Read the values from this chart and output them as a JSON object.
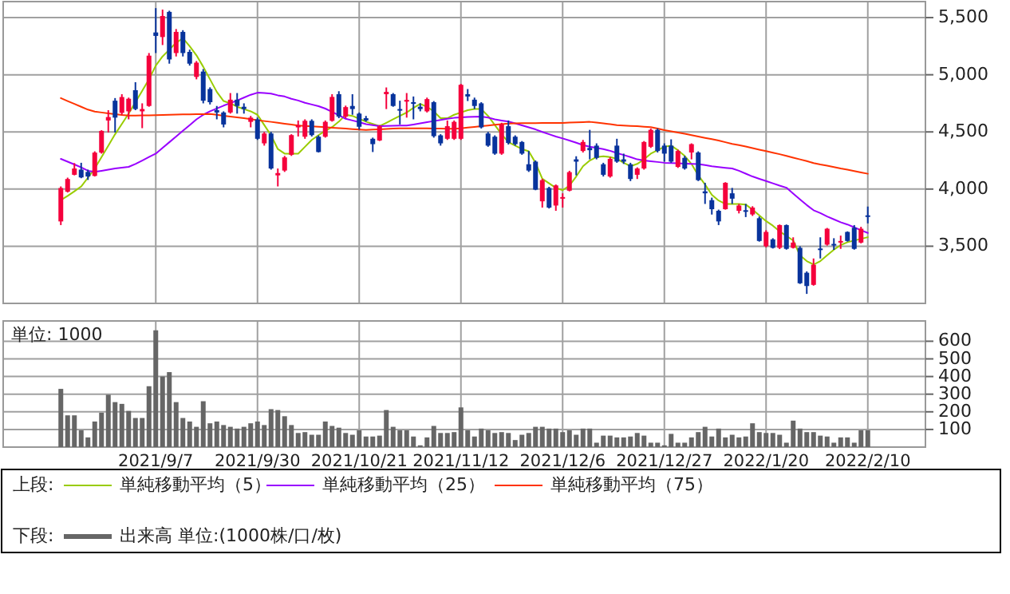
{
  "chart_data": [
    {
      "type": "candlestick",
      "categories": [
        null,
        null,
        null,
        null,
        null,
        null,
        null,
        null,
        null,
        null,
        null,
        null,
        null,
        null,
        null,
        null,
        null,
        null,
        null,
        null,
        null,
        null,
        "2021/9/7",
        null,
        null,
        null,
        null,
        null,
        null,
        null,
        null,
        null,
        null,
        null,
        null,
        null,
        null,
        "2021/9/30",
        null,
        null,
        null,
        null,
        null,
        null,
        null,
        null,
        null,
        null,
        null,
        null,
        null,
        null,
        "2021/10/21",
        null,
        null,
        null,
        null,
        null,
        null,
        null,
        null,
        null,
        null,
        null,
        null,
        null,
        null,
        "2021/11/12",
        null,
        null,
        null,
        null,
        null,
        null,
        null,
        null,
        null,
        null,
        null,
        null,
        null,
        null,
        "2021/12/6",
        null,
        null,
        null,
        null,
        null,
        null,
        null,
        null,
        null,
        null,
        null,
        null,
        null,
        null,
        "2021/12/27",
        null,
        null,
        null,
        null,
        null,
        null,
        null,
        null,
        null,
        null,
        null,
        null,
        null,
        null,
        "2022/1/20",
        null,
        null,
        null,
        null,
        null,
        null,
        null,
        null,
        null,
        null,
        null,
        null,
        null,
        null,
        "2022/2/10",
        null,
        null,
        null,
        null,
        null,
        null,
        null,
        null
      ],
      "ohlc": [
        null,
        null,
        null,
        null,
        null,
        null,
        null,
        null,
        [
          3717,
          4023,
          3685,
          4009
        ],
        [
          3977,
          4100,
          3970,
          4088
        ],
        [
          4125,
          4227,
          4120,
          4180
        ],
        [
          4170,
          4230,
          4095,
          4102
        ],
        [
          4150,
          4170,
          4080,
          4110
        ],
        [
          4115,
          4330,
          4110,
          4319
        ],
        [
          4319,
          4515,
          4310,
          4509
        ],
        [
          4600,
          4690,
          4495,
          4630
        ],
        [
          4773,
          4796,
          4495,
          4625
        ],
        [
          4667,
          4830,
          4650,
          4805
        ],
        [
          4680,
          4800,
          4610,
          4790
        ],
        [
          4865,
          4935,
          4690,
          4700
        ],
        [
          4680,
          4750,
          4533,
          4700
        ],
        [
          4727,
          5190,
          4720,
          5167
        ],
        [
          5370,
          5583,
          5190,
          5340
        ],
        [
          5330,
          5570,
          5260,
          5514
        ],
        [
          5550,
          5560,
          5097,
          5134
        ],
        [
          5190,
          5400,
          5160,
          5375
        ],
        [
          5375,
          5390,
          5160,
          5190
        ],
        [
          5200,
          5220,
          5080,
          5097
        ],
        [
          4981,
          5120,
          4960,
          5106
        ],
        [
          5028,
          5050,
          4750,
          4773
        ],
        [
          4875,
          4890,
          4740,
          4760
        ],
        [
          4690,
          4727,
          4610,
          4670
        ],
        [
          4670,
          4680,
          4540,
          4565
        ],
        [
          4670,
          4840,
          4660,
          4782
        ],
        [
          4782,
          4840,
          4660,
          4727
        ],
        [
          4720,
          4750,
          4660,
          4700
        ],
        [
          4588,
          4640,
          4540,
          4625
        ],
        [
          4610,
          4625,
          4430,
          4440
        ],
        [
          4400,
          4500,
          4380,
          4486
        ],
        [
          4486,
          4500,
          4170,
          4180
        ],
        [
          4120,
          4180,
          4023,
          4140
        ],
        [
          4162,
          4290,
          4150,
          4277
        ],
        [
          4300,
          4480,
          4290,
          4472
        ],
        [
          4540,
          4600,
          4460,
          4560
        ],
        [
          4458,
          4610,
          4440,
          4597
        ],
        [
          4597,
          4610,
          4460,
          4472
        ],
        [
          4458,
          4470,
          4320,
          4324
        ],
        [
          4458,
          4600,
          4450,
          4588
        ],
        [
          4597,
          4830,
          4590,
          4806
        ],
        [
          4830,
          4856,
          4620,
          4634
        ],
        [
          4634,
          4730,
          4620,
          4717
        ],
        [
          4727,
          4830,
          4650,
          4700
        ],
        [
          4660,
          4670,
          4520,
          4545
        ],
        [
          4620,
          4640,
          4590,
          4600
        ],
        [
          4440,
          4450,
          4324,
          4393
        ],
        [
          4425,
          4560,
          4420,
          4550
        ],
        [
          4830,
          4889,
          4700,
          4850
        ],
        [
          4830,
          4840,
          4720,
          4727
        ],
        [
          4700,
          4773,
          4565,
          4690
        ],
        [
          4765,
          4840,
          4625,
          4780
        ],
        [
          4760,
          4810,
          4610,
          4750
        ],
        [
          4720,
          4750,
          4680,
          4700
        ],
        [
          4680,
          4800,
          4670,
          4787
        ],
        [
          4760,
          4770,
          4450,
          4463
        ],
        [
          4470,
          4480,
          4380,
          4400
        ],
        [
          4440,
          4600,
          4430,
          4550
        ],
        [
          4440,
          4600,
          4430,
          4588
        ],
        [
          4440,
          4920,
          4430,
          4912
        ],
        [
          4830,
          4875,
          4770,
          4810
        ],
        [
          4782,
          4800,
          4700,
          4727
        ],
        [
          4750,
          4760,
          4530,
          4540
        ],
        [
          4486,
          4500,
          4370,
          4380
        ],
        [
          4458,
          4470,
          4300,
          4310
        ],
        [
          4310,
          4580,
          4300,
          4565
        ],
        [
          4550,
          4600,
          4390,
          4403
        ],
        [
          4458,
          4470,
          4380,
          4393
        ],
        [
          4412,
          4420,
          4300,
          4310
        ],
        [
          4217,
          4333,
          4150,
          4162
        ],
        [
          4240,
          4250,
          3990,
          3995
        ],
        [
          3893,
          4090,
          3838,
          4078
        ],
        [
          4009,
          4020,
          3830,
          3838
        ],
        [
          3856,
          4040,
          3810,
          4032
        ],
        [
          3925,
          3963,
          3838,
          3930
        ],
        [
          3986,
          4160,
          3980,
          4148
        ],
        [
          4260,
          4287,
          4120,
          4240
        ],
        [
          4333,
          4430,
          4320,
          4412
        ],
        [
          4360,
          4518,
          4260,
          4340
        ],
        [
          4380,
          4400,
          4260,
          4273
        ],
        [
          4217,
          4230,
          4110,
          4125
        ],
        [
          4110,
          4280,
          4100,
          4264
        ],
        [
          4380,
          4440,
          4230,
          4240
        ],
        [
          4260,
          4310,
          4220,
          4240
        ],
        [
          4217,
          4230,
          4070,
          4088
        ],
        [
          4125,
          4190,
          4088,
          4180
        ],
        [
          4180,
          4420,
          4170,
          4412
        ],
        [
          4370,
          4530,
          4360,
          4518
        ],
        [
          4518,
          4530,
          4320,
          4333
        ],
        [
          4380,
          4400,
          4240,
          4310
        ],
        [
          4380,
          4435,
          4230,
          4240
        ],
        [
          4194,
          4345,
          4185,
          4333
        ],
        [
          4273,
          4290,
          4170,
          4180
        ],
        [
          4320,
          4400,
          4260,
          4393
        ],
        [
          4320,
          4330,
          4070,
          4078
        ],
        [
          3980,
          4055,
          3870,
          3963
        ],
        [
          3903,
          3925,
          3777,
          3824
        ],
        [
          3810,
          3820,
          3685,
          3717
        ],
        [
          3824,
          4060,
          3820,
          4055
        ],
        [
          3963,
          4010,
          3870,
          3916
        ],
        [
          3810,
          3870,
          3787,
          3856
        ],
        [
          3815,
          3870,
          3755,
          3810
        ],
        [
          3778,
          3850,
          3765,
          3838
        ],
        [
          3745,
          3760,
          3540,
          3546
        ],
        [
          3500,
          3640,
          3490,
          3625
        ],
        [
          3560,
          3570,
          3480,
          3486
        ],
        [
          3486,
          3690,
          3475,
          3685
        ],
        [
          3685,
          3690,
          3470,
          3477
        ],
        [
          3486,
          3578,
          3480,
          3532
        ],
        [
          3486,
          3500,
          3170,
          3176
        ],
        [
          3268,
          3280,
          3083,
          3152
        ],
        [
          3162,
          3393,
          3155,
          3338
        ],
        [
          3480,
          3578,
          3393,
          3477
        ],
        [
          3514,
          3660,
          3505,
          3653
        ],
        [
          3520,
          3570,
          3468,
          3514
        ],
        [
          3540,
          3593,
          3477,
          3546
        ],
        [
          3625,
          3630,
          3540,
          3546
        ],
        [
          3662,
          3685,
          3470,
          3477
        ],
        [
          3532,
          3670,
          3525,
          3653
        ],
        [
          3770,
          3847,
          3700,
          3763
        ],
        null,
        null,
        null,
        null,
        null,
        null,
        null,
        null
      ],
      "colors": [
        null,
        null,
        null,
        null,
        null,
        null,
        null,
        null,
        "#f5003c",
        "#f5003c",
        "#f5003c",
        "#08339c",
        "#08339c",
        "#f5003c",
        "#f5003c",
        "#f5003c",
        "#08339c",
        "#f5003c",
        "#f5003c",
        "#08339c",
        "#f5003c",
        "#f5003c",
        "#08339c",
        "#f5003c",
        "#08339c",
        "#f5003c",
        "#08339c",
        "#08339c",
        "#f5003c",
        "#08339c",
        "#08339c",
        "#08339c",
        "#08339c",
        "#f5003c",
        "#08339c",
        "#08339c",
        "#f5003c",
        "#08339c",
        "#f5003c",
        "#08339c",
        "#f5003c",
        "#f5003c",
        "#f5003c",
        "#f5003c",
        "#f5003c",
        "#08339c",
        "#08339c",
        "#f5003c",
        "#f5003c",
        "#08339c",
        "#f5003c",
        "#08339c",
        "#08339c",
        "#08339c",
        "#08339c",
        "#f5003c",
        "#f5003c",
        "#08339c",
        "#08339c",
        "#f5003c",
        "#08339c",
        "#08339c",
        "#f5003c",
        "#08339c",
        "#08339c",
        "#f5003c",
        "#f5003c",
        "#f5003c",
        "#08339c",
        "#08339c",
        "#08339c",
        "#08339c",
        "#08339c",
        "#f5003c",
        "#08339c",
        "#08339c",
        "#08339c",
        "#08339c",
        "#08339c",
        "#f5003c",
        "#08339c",
        "#f5003c",
        "#f5003c",
        "#f5003c",
        "#08339c",
        "#f5003c",
        "#08339c",
        "#08339c",
        "#08339c",
        "#f5003c",
        "#08339c",
        "#08339c",
        "#08339c",
        "#f5003c",
        "#f5003c",
        "#f5003c",
        "#08339c",
        "#08339c",
        "#08339c",
        "#f5003c",
        "#08339c",
        "#f5003c",
        "#08339c",
        "#08339c",
        "#08339c",
        "#08339c",
        "#f5003c",
        "#08339c",
        "#f5003c",
        "#08339c",
        "#f5003c",
        "#08339c",
        "#f5003c",
        "#08339c",
        "#f5003c",
        "#08339c",
        "#f5003c",
        "#08339c",
        "#08339c",
        "#f5003c",
        "#08339c",
        "#f5003c",
        "#08339c",
        "#f5003c",
        "#08339c",
        "#08339c",
        "#f5003c",
        "#08339c",
        null,
        null,
        null,
        null,
        null,
        null,
        null,
        null
      ],
      "series": [
        {
          "type": "line",
          "name": "単純移動平均（5）",
          "color": "#99cc00",
          "values": [
            null,
            null,
            null,
            null,
            null,
            null,
            null,
            null,
            3903,
            3940,
            3980,
            4023,
            4100,
            4180,
            4280,
            4380,
            4480,
            4570,
            4660,
            4760,
            4860,
            4960,
            5080,
            5160,
            5220,
            5280,
            5319,
            5250,
            5170,
            5070,
            4960,
            4850,
            4770,
            4750,
            4720,
            4700,
            4680,
            4650,
            4560,
            4470,
            4350,
            4310,
            4310,
            4310,
            4370,
            4430,
            4472,
            4510,
            4542,
            4590,
            4650,
            4640,
            4615,
            4590,
            4570,
            4551,
            4580,
            4610,
            4640,
            4670,
            4710,
            4745,
            4720,
            4680,
            4620,
            4620,
            4650,
            4670,
            4690,
            4700,
            4700,
            4640,
            4560,
            4480,
            4410,
            4380,
            4350,
            4330,
            4230,
            4090,
            4050,
            4010,
            3990,
            4030,
            4110,
            4200,
            4250,
            4280,
            4287,
            4280,
            4265,
            4230,
            4200,
            4220,
            4260,
            4310,
            4340,
            4370,
            4380,
            4340,
            4290,
            4220,
            4120,
            4040,
            3950,
            3900,
            3870,
            3870,
            3870,
            3865,
            3820,
            3770,
            3720,
            3680,
            3630,
            3590,
            3550,
            3420,
            3370,
            3340,
            3370,
            3420,
            3470,
            3510,
            3535,
            3550,
            3565,
            3579,
            null,
            null,
            null,
            null,
            null,
            null,
            null,
            null
          ]
        },
        {
          "type": "line",
          "name": "単純移動平均（25）",
          "color": "#9900ff",
          "values": [
            null,
            null,
            null,
            null,
            null,
            null,
            null,
            null,
            4264,
            4240,
            4215,
            4190,
            4160,
            4150,
            4160,
            4170,
            4180,
            4188,
            4194,
            4220,
            4250,
            4280,
            4310,
            4360,
            4410,
            4460,
            4510,
            4560,
            4610,
            4650,
            4681,
            4705,
            4730,
            4752,
            4775,
            4800,
            4825,
            4843,
            4840,
            4835,
            4820,
            4810,
            4790,
            4775,
            4755,
            4740,
            4725,
            4704,
            4675,
            4645,
            4615,
            4600,
            4585,
            4568,
            4560,
            4551,
            4553,
            4554,
            4555,
            4555,
            4565,
            4575,
            4585,
            4595,
            4605,
            4615,
            4623,
            4627,
            4630,
            4632,
            4634,
            4625,
            4610,
            4600,
            4590,
            4575,
            4557,
            4540,
            4522,
            4500,
            4480,
            4460,
            4443,
            4425,
            4405,
            4385,
            4370,
            4360,
            4350,
            4335,
            4315,
            4298,
            4280,
            4260,
            4250,
            4243,
            4237,
            4230,
            4227,
            4225,
            4222,
            4220,
            4218,
            4210,
            4200,
            4193,
            4186,
            4180,
            4160,
            4135,
            4110,
            4090,
            4070,
            4050,
            4030,
            4012,
            3960,
            3910,
            3860,
            3815,
            3790,
            3760,
            3735,
            3710,
            3690,
            3665,
            3640,
            3616,
            null,
            null,
            null,
            null,
            null,
            null,
            null,
            null
          ]
        },
        {
          "type": "line",
          "name": "単純移動平均（75）",
          "color": "#ff3300",
          "values": [
            null,
            null,
            null,
            null,
            null,
            null,
            null,
            null,
            4796,
            4770,
            4745,
            4720,
            4695,
            4678,
            4670,
            4662,
            4655,
            4648,
            4643,
            4643,
            4644,
            4645,
            4646,
            4648,
            4650,
            4651,
            4653,
            4654,
            4655,
            4656,
            4657,
            4650,
            4642,
            4635,
            4627,
            4620,
            4612,
            4602,
            4595,
            4588,
            4580,
            4572,
            4564,
            4556,
            4552,
            4548,
            4545,
            4541,
            4537,
            4533,
            4529,
            4525,
            4521,
            4518,
            4520,
            4523,
            4526,
            4529,
            4531,
            4532,
            4532,
            4531,
            4531,
            4530,
            4529,
            4528,
            4528,
            4532,
            4538,
            4544,
            4550,
            4556,
            4562,
            4568,
            4573,
            4575,
            4576,
            4577,
            4577,
            4578,
            4578,
            4579,
            4579,
            4581,
            4583,
            4586,
            4588,
            4582,
            4575,
            4568,
            4560,
            4556,
            4553,
            4550,
            4546,
            4542,
            4530,
            4515,
            4505,
            4495,
            4484,
            4472,
            4460,
            4448,
            4437,
            4425,
            4410,
            4395,
            4385,
            4372,
            4358,
            4345,
            4332,
            4318,
            4305,
            4290,
            4275,
            4260,
            4245,
            4228,
            4215,
            4204,
            4192,
            4180,
            4170,
            4158,
            4146,
            4134,
            null,
            null,
            null,
            null,
            null,
            null,
            null,
            null
          ]
        }
      ],
      "ylim": [
        3000,
        5640
      ],
      "yticks": [
        {
          "value": 3500,
          "label": "3,500"
        },
        {
          "value": 4000,
          "label": "4,000"
        },
        {
          "value": 4500,
          "label": "4,500"
        },
        {
          "value": 5000,
          "label": "5,000"
        },
        {
          "value": 5500,
          "label": "5,500"
        }
      ],
      "grid": true,
      "legend": "bottom",
      "tick_labels": "y",
      "annotations": [
        "上段:"
      ]
    },
    {
      "type": "bar",
      "categories": [
        null,
        null,
        null,
        null,
        null,
        null,
        null,
        null,
        null,
        null,
        null,
        null,
        null,
        null,
        null,
        null,
        null,
        null,
        null,
        null,
        null,
        null,
        "2021/9/7",
        null,
        null,
        null,
        null,
        null,
        null,
        null,
        null,
        null,
        null,
        null,
        null,
        null,
        null,
        "2021/9/30",
        null,
        null,
        null,
        null,
        null,
        null,
        null,
        null,
        null,
        null,
        null,
        null,
        null,
        null,
        "2021/10/21",
        null,
        null,
        null,
        null,
        null,
        null,
        null,
        null,
        null,
        null,
        null,
        null,
        null,
        null,
        "2021/11/12",
        null,
        null,
        null,
        null,
        null,
        null,
        null,
        null,
        null,
        null,
        null,
        null,
        null,
        null,
        "2021/12/6",
        null,
        null,
        null,
        null,
        null,
        null,
        null,
        null,
        null,
        null,
        null,
        null,
        null,
        null,
        "2021/12/27",
        null,
        null,
        null,
        null,
        null,
        null,
        null,
        null,
        null,
        null,
        null,
        null,
        null,
        null,
        "2022/1/20",
        null,
        null,
        null,
        null,
        null,
        null,
        null,
        null,
        null,
        null,
        null,
        null,
        null,
        null,
        "2022/2/10",
        null,
        null,
        null,
        null,
        null,
        null,
        null,
        null
      ],
      "series": [
        {
          "name": "出来高 単位:(1000株/口/枚)",
          "color": "#666666",
          "values": [
            null,
            null,
            null,
            null,
            null,
            null,
            null,
            null,
            330,
            180,
            180,
            95,
            55,
            145,
            195,
            297,
            255,
            245,
            205,
            165,
            165,
            345,
            662,
            400,
            425,
            255,
            165,
            145,
            115,
            260,
            135,
            145,
            125,
            115,
            105,
            115,
            135,
            145,
            125,
            215,
            210,
            175,
            125,
            80,
            85,
            70,
            70,
            145,
            120,
            110,
            80,
            70,
            95,
            60,
            60,
            65,
            210,
            115,
            95,
            95,
            60,
            10,
            55,
            120,
            80,
            80,
            85,
            225,
            95,
            60,
            105,
            95,
            80,
            85,
            80,
            40,
            70,
            80,
            115,
            115,
            105,
            105,
            85,
            95,
            70,
            105,
            105,
            25,
            65,
            65,
            55,
            55,
            60,
            80,
            65,
            25,
            25,
            10,
            75,
            25,
            25,
            55,
            85,
            115,
            60,
            105,
            55,
            70,
            55,
            60,
            135,
            85,
            80,
            80,
            70,
            25,
            150,
            105,
            85,
            85,
            65,
            60,
            25,
            55,
            55,
            25,
            95,
            95,
            null,
            null,
            null,
            null,
            null,
            null,
            null,
            null
          ]
        }
      ],
      "ylim": [
        0,
        715
      ],
      "yticks": [
        100,
        200,
        300,
        400,
        500,
        600
      ],
      "grid": true,
      "legend": "bottom",
      "annotations": [
        "単位: 1000",
        "下段:"
      ]
    }
  ]
}
